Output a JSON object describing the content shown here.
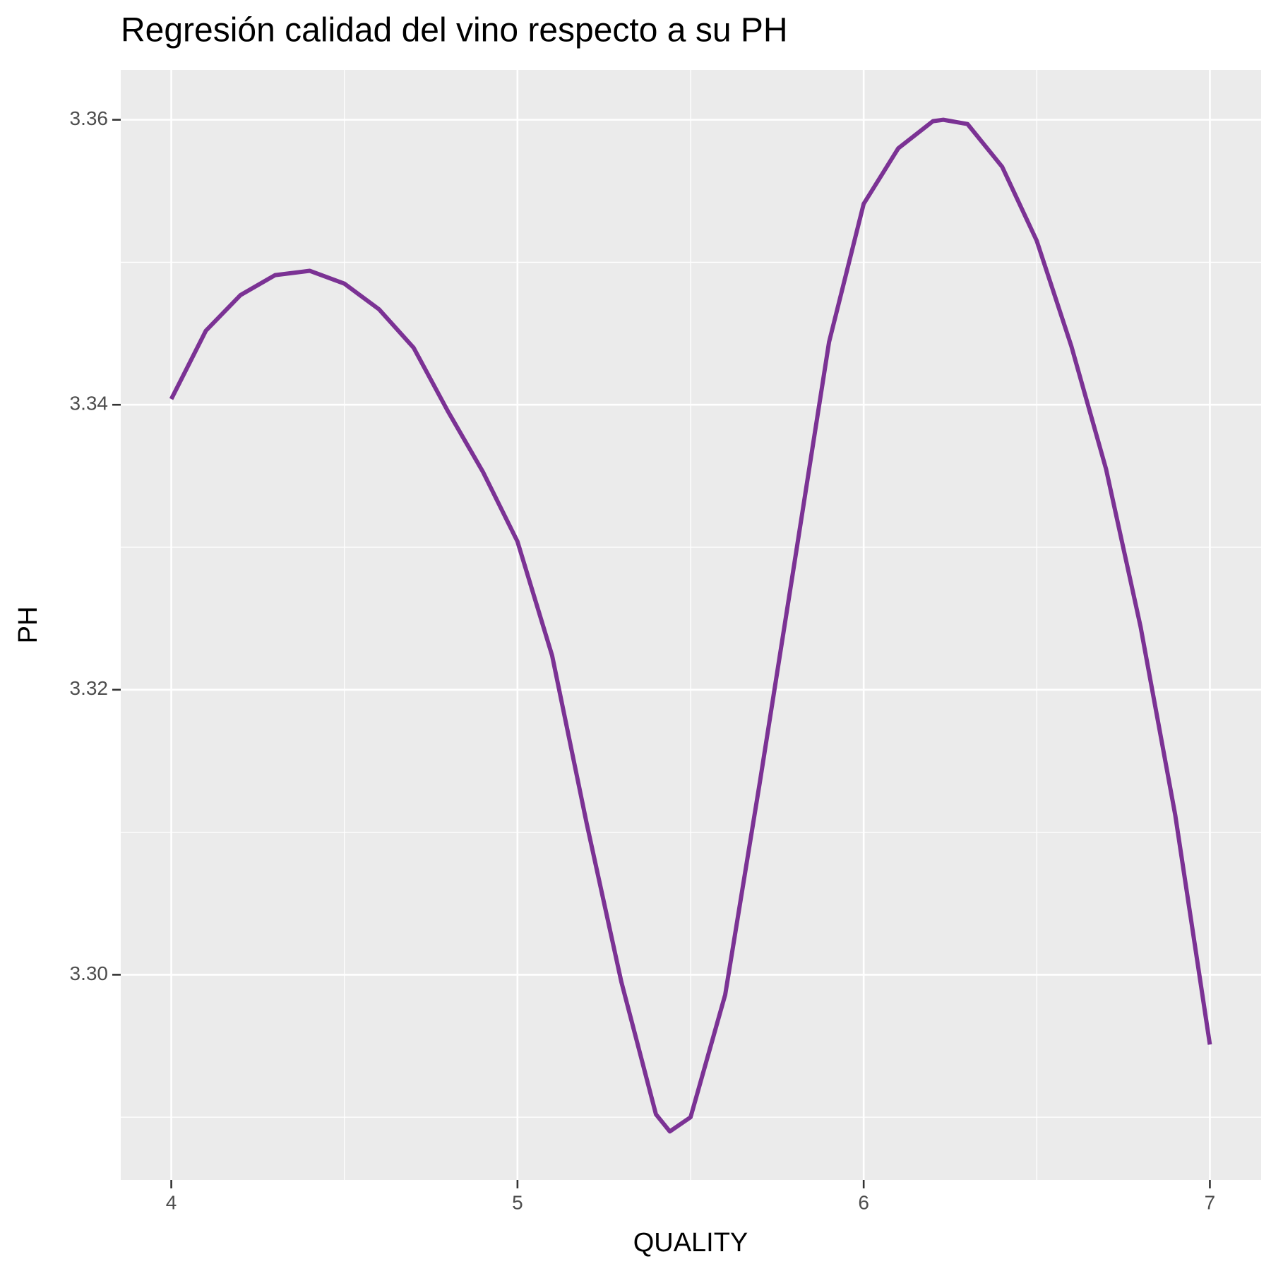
{
  "chart_data": {
    "type": "line",
    "title": "Regresión calidad del vino respecto a su PH",
    "x_label": "QUALITY",
    "y_label": "PH",
    "x": [
      4.0,
      4.1,
      4.2,
      4.3,
      4.4,
      4.5,
      4.6,
      4.7,
      4.8,
      4.9,
      5.0,
      5.1,
      5.2,
      5.3,
      5.4,
      5.44,
      5.5,
      5.6,
      5.7,
      5.8,
      5.9,
      6.0,
      6.1,
      6.2,
      6.23,
      6.3,
      6.4,
      6.5,
      6.6,
      6.7,
      6.8,
      6.9,
      7.0
    ],
    "series": [
      {
        "color": "#7b3294",
        "values": [
          3.3404,
          3.3452,
          3.3477,
          3.3491,
          3.3494,
          3.3485,
          3.3467,
          3.344,
          3.3395,
          3.3353,
          3.3304,
          3.3224,
          3.3106,
          3.2995,
          3.2902,
          3.289,
          3.29,
          3.2986,
          3.3135,
          3.3289,
          3.3444,
          3.3541,
          3.358,
          3.3599,
          3.36,
          3.3597,
          3.3567,
          3.3515,
          3.3441,
          3.3355,
          3.3244,
          3.3112,
          3.2951
        ]
      }
    ],
    "xlim": [
      3.854,
      7.148
    ],
    "ylim": [
      3.2856,
      3.3635
    ],
    "xticks": [
      4,
      5,
      6,
      7
    ],
    "yticks": [
      {
        "value": 3.3,
        "label": "3.30"
      },
      {
        "value": 3.32,
        "label": "3.32"
      },
      {
        "value": 3.34,
        "label": "3.34"
      },
      {
        "value": 3.36,
        "label": "3.36"
      }
    ],
    "x_minor_ticks": [
      4.5,
      5.5,
      6.5
    ],
    "y_minor_ticks": [
      3.29,
      3.31,
      3.33,
      3.35
    ],
    "grid": true,
    "panel_color": "#ebebeb",
    "grid_color": "#ffffff"
  }
}
